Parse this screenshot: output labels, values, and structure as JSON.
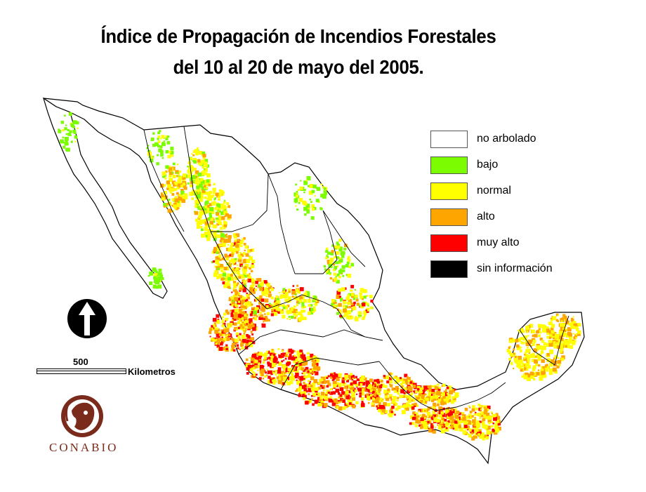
{
  "title": {
    "line1": "Índice de Propagación de Incendios Forestales",
    "line2": "del 10 al 20 de mayo del 2005."
  },
  "legend": {
    "items": [
      {
        "label": "no arbolado",
        "color": "#ffffff"
      },
      {
        "label": "bajo",
        "color": "#7cfc00"
      },
      {
        "label": "normal",
        "color": "#ffff00"
      },
      {
        "label": "alto",
        "color": "#ffa500"
      },
      {
        "label": "muy alto",
        "color": "#ff0000"
      },
      {
        "label": "sin información",
        "color": "#000000"
      }
    ]
  },
  "scale": {
    "value": "500",
    "unit": "Kilometros"
  },
  "logo": {
    "text": "CONABIO",
    "color": "#7a2b1c"
  },
  "north_arrow": {
    "icon": "north-arrow-icon"
  }
}
